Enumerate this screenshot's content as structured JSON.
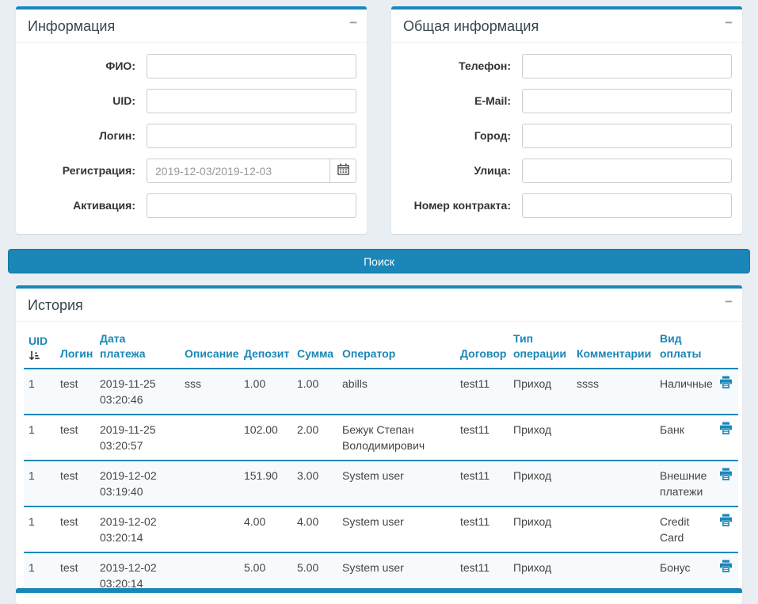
{
  "colors": {
    "accent": "#1a87b8",
    "page_background": "#e9eef2",
    "panel_title_text": "#37474f",
    "table_header_text": "#1a87b8",
    "table_body_text": "#444444",
    "date_input_text": "#999999"
  },
  "panels": {
    "info": {
      "title": "Информация",
      "collapse_label": "−",
      "fields": [
        {
          "label": "ФИО:",
          "value": ""
        },
        {
          "label": "UID:",
          "value": ""
        },
        {
          "label": "Логин:",
          "value": ""
        },
        {
          "label": "Регистрация:",
          "value": "2019-12-03/2019-12-03"
        },
        {
          "label": "Активация:",
          "value": ""
        }
      ]
    },
    "general": {
      "title": "Общая информация",
      "collapse_label": "−",
      "fields": [
        {
          "label": "Телефон:",
          "value": ""
        },
        {
          "label": "E-Mail:",
          "value": ""
        },
        {
          "label": "Город:",
          "value": ""
        },
        {
          "label": "Улица:",
          "value": ""
        },
        {
          "label": "Номер контракта:",
          "value": ""
        }
      ]
    }
  },
  "search_button": {
    "label": "Поиск"
  },
  "history": {
    "title": "История",
    "collapse_label": "−",
    "columns": [
      {
        "label": "UID",
        "sortable": true
      },
      {
        "label": "Логин"
      },
      {
        "label": "Дата\nплатежа"
      },
      {
        "label": "Описание"
      },
      {
        "label": "Депозит"
      },
      {
        "label": "Сумма"
      },
      {
        "label": "Оператор"
      },
      {
        "label": "Договор"
      },
      {
        "label": "Тип\nоперации"
      },
      {
        "label": "Комментарии"
      },
      {
        "label": "Вид\nоплаты"
      },
      {
        "label": ""
      }
    ],
    "rows": [
      {
        "uid": "1",
        "login": "test",
        "date": "2019-11-25",
        "time": "03:20:46",
        "description": "sss",
        "deposit": "1.00",
        "sum": "1.00",
        "operator": "abills",
        "contract": "test11",
        "op_type": "Приход",
        "comments": "ssss",
        "pay_kind": "Наличные"
      },
      {
        "uid": "1",
        "login": "test",
        "date": "2019-11-25",
        "time": "03:20:57",
        "description": "",
        "deposit": "102.00",
        "sum": "2.00",
        "operator": "Бежук Степан Володимирович",
        "contract": "test11",
        "op_type": "Приход",
        "comments": "",
        "pay_kind": "Банк"
      },
      {
        "uid": "1",
        "login": "test",
        "date": "2019-12-02",
        "time": "03:19:40",
        "description": "",
        "deposit": "151.90",
        "sum": "3.00",
        "operator": "System user",
        "contract": "test11",
        "op_type": "Приход",
        "comments": "",
        "pay_kind": "Внешние платежи"
      },
      {
        "uid": "1",
        "login": "test",
        "date": "2019-12-02",
        "time": "03:20:14",
        "description": "",
        "deposit": "4.00",
        "sum": "4.00",
        "operator": "System user",
        "contract": "test11",
        "op_type": "Приход",
        "comments": "",
        "pay_kind": "Credit Card"
      },
      {
        "uid": "1",
        "login": "test",
        "date": "2019-12-02",
        "time": "03:20:14",
        "description": "",
        "deposit": "5.00",
        "sum": "5.00",
        "operator": "System user",
        "contract": "test11",
        "op_type": "Приход",
        "comments": "",
        "pay_kind": "Бонус"
      }
    ]
  }
}
